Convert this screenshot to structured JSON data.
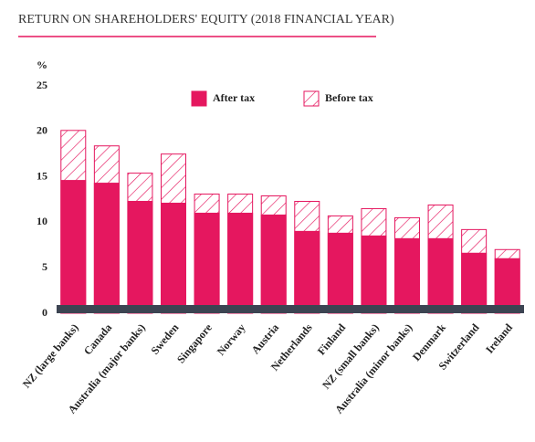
{
  "chart_data": {
    "type": "bar",
    "title": "RETURN ON SHAREHOLDERS' EQUITY (2018 FINANCIAL YEAR)",
    "y_label": "%",
    "categories": [
      "NZ (large banks)",
      "Canada",
      "Australia (major banks)",
      "Sweden",
      "Singapore",
      "Norway",
      "Austria",
      "Netherlands",
      "Finland",
      "NZ (small banks)",
      "Australia (minor banks)",
      "Denmark",
      "Switzerland",
      "Ireland"
    ],
    "series": [
      {
        "name": "Before tax",
        "color": "#e5175f",
        "pattern": "hatch",
        "values": [
          20.1,
          18.4,
          15.4,
          17.5,
          13.1,
          13.1,
          12.9,
          12.3,
          10.7,
          11.5,
          10.5,
          11.9,
          9.2,
          7.0
        ]
      },
      {
        "name": "After tax",
        "color": "#e5175f",
        "pattern": "solid",
        "values": [
          14.6,
          14.3,
          12.3,
          12.1,
          11.0,
          11.0,
          10.8,
          9.0,
          8.8,
          8.5,
          8.2,
          8.2,
          6.6,
          6.0
        ]
      }
    ],
    "ylim": [
      0,
      25
    ],
    "yticks": [
      0,
      5,
      10,
      15,
      20,
      25
    ],
    "grid": false
  }
}
